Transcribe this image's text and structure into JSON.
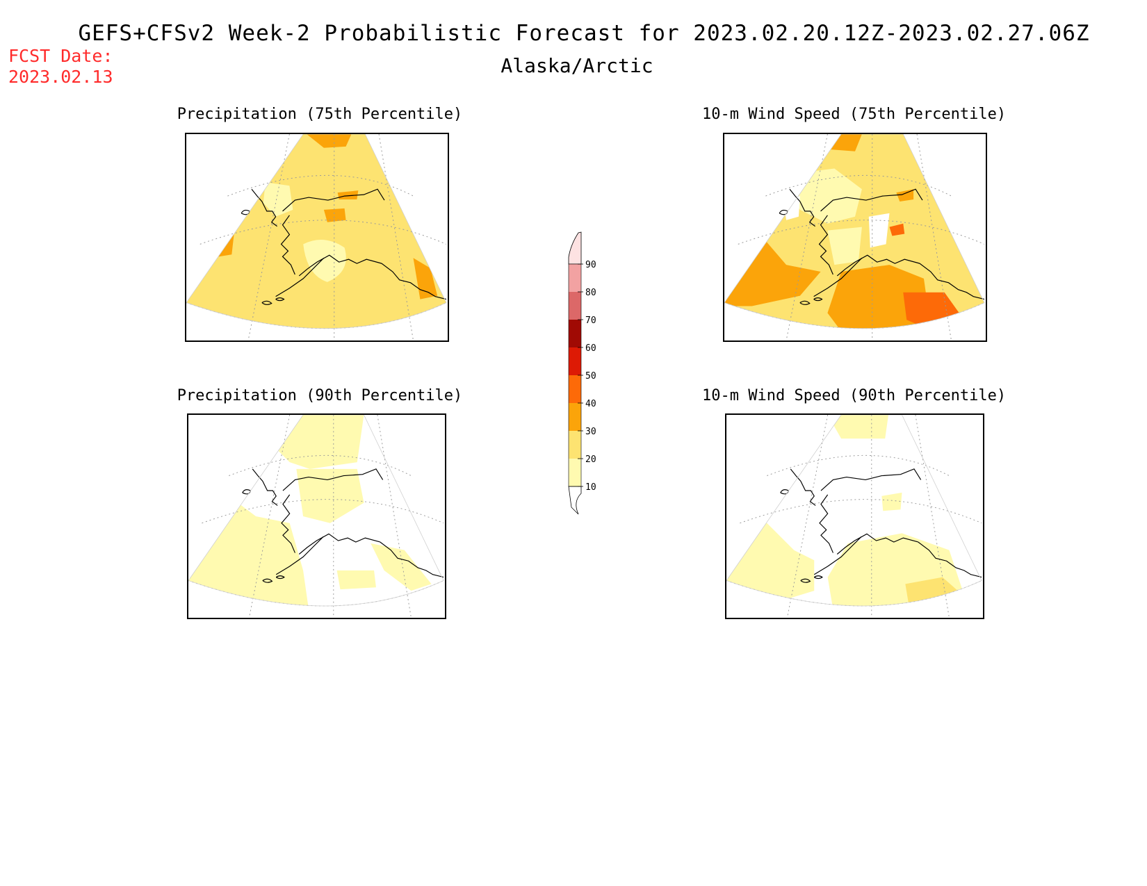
{
  "header": {
    "title": "GEFS+CFSv2 Week-2 Probabilistic Forecast for 2023.02.20.12Z-2023.02.27.06Z",
    "subtitle": "Alaska/Arctic",
    "fcst_label": "FCST Date:",
    "fcst_date": "2023.02.13"
  },
  "panels": [
    {
      "title": "Precipitation (75th Percentile)",
      "variable": "precipitation",
      "percentile": 75
    },
    {
      "title": "10-m Wind Speed (75th Percentile)",
      "variable": "wind_speed",
      "percentile": 75
    },
    {
      "title": "Precipitation (90th Percentile)",
      "variable": "precipitation",
      "percentile": 90
    },
    {
      "title": "10-m Wind Speed (90th Percentile)",
      "variable": "wind_speed",
      "percentile": 90
    }
  ],
  "colorbar": {
    "levels": [
      "10",
      "20",
      "30",
      "40",
      "50",
      "60",
      "70",
      "80",
      "90"
    ],
    "colors": [
      "#ffffff",
      "#fffab0",
      "#fde371",
      "#fba40a",
      "#fd6a08",
      "#dd1a05",
      "#a00a04",
      "#dc6868",
      "#f2a2a2",
      "#fde2e2"
    ]
  }
}
